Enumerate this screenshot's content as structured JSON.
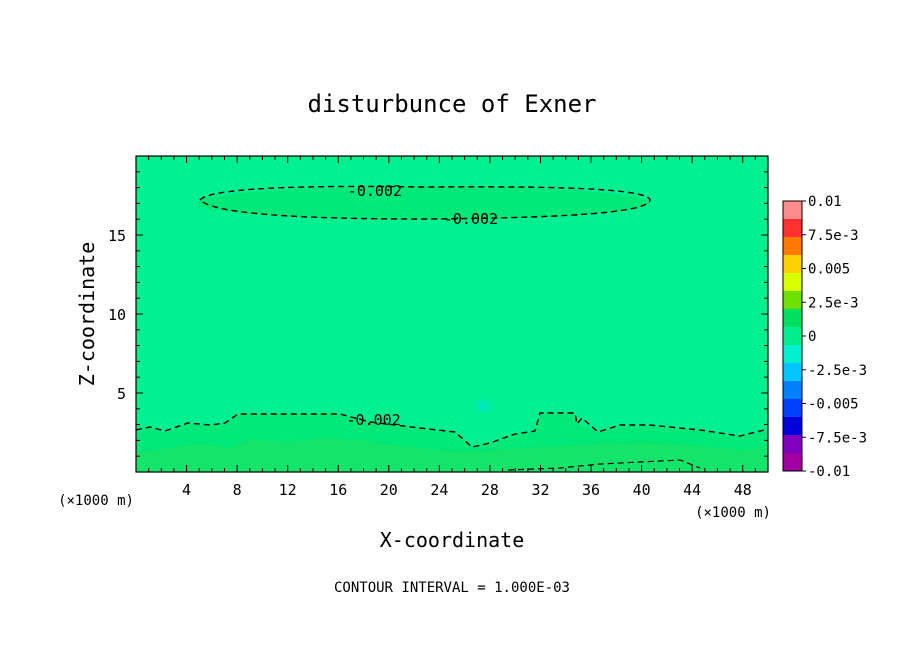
{
  "chart_data": {
    "type": "heatmap",
    "title": "disturbunce of Exner",
    "xlabel": "X-coordinate",
    "ylabel": "Z-coordinate",
    "x_unit_left": "(×1000 m)",
    "x_unit_right": "(×1000 m)",
    "xlim": [
      0,
      50
    ],
    "ylim": [
      0,
      20
    ],
    "x_ticks": [
      "4",
      "8",
      "12",
      "16",
      "20",
      "24",
      "28",
      "32",
      "36",
      "40",
      "44",
      "48"
    ],
    "x_tick_values": [
      4,
      8,
      12,
      16,
      20,
      24,
      28,
      32,
      36,
      40,
      44,
      48
    ],
    "y_ticks": [
      "5",
      "10",
      "15"
    ],
    "y_tick_values": [
      5,
      10,
      15
    ],
    "contour_interval_text": "CONTOUR INTERVAL = 1.000E-03",
    "contour_labels": [
      {
        "text": "-0.002",
        "x": 18.9,
        "z": 17.8
      },
      {
        "text": "-0.002",
        "x": 26.5,
        "z": 16.0
      },
      {
        "text": "-0.002",
        "x": 18.8,
        "z": 3.3
      }
    ],
    "colorbar": {
      "labels": [
        "0.01",
        "7.5e-3",
        "0.005",
        "2.5e-3",
        "0",
        "-2.5e-3",
        "-0.005",
        "-7.5e-3",
        "-0.01"
      ],
      "colors": [
        "#ff8c8c",
        "#ff3030",
        "#ff7a00",
        "#ffd000",
        "#d8ff00",
        "#6ee000",
        "#00e060",
        "#00ee90",
        "#00f0d0",
        "#00c8ff",
        "#0080ff",
        "#0040ff",
        "#0000d8",
        "#8000c0",
        "#a000a0"
      ]
    },
    "field_colors": {
      "background": "#00f090",
      "weak_negative": "#00f0a8",
      "near_zero": "#00e878",
      "surface": "#14e46a",
      "spot": "#00e4c8"
    }
  }
}
